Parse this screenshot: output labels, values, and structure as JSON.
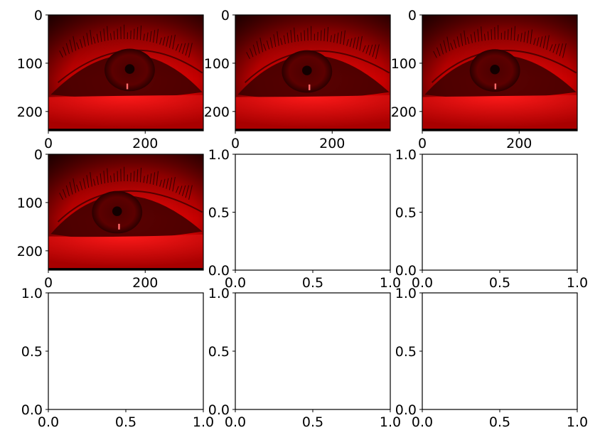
{
  "figure": {
    "background": "#ffffff",
    "image_color": "#e00000"
  },
  "chart_data": [
    {
      "type": "image",
      "content": "red-tinted close-up of an eye",
      "image_size": [
        320,
        240
      ],
      "xlim": [
        0,
        320
      ],
      "ylim": [
        240,
        0
      ],
      "xticks": [
        0,
        200
      ],
      "yticks": [
        0,
        100,
        200
      ],
      "xtick_labels": [
        "0",
        "200"
      ],
      "ytick_labels": [
        "0",
        "100",
        "200"
      ],
      "pupil_xy": [
        168,
        112
      ],
      "glint_xy": [
        163,
        148
      ]
    },
    {
      "type": "image",
      "content": "red-tinted close-up of an eye",
      "image_size": [
        320,
        240
      ],
      "xlim": [
        0,
        320
      ],
      "ylim": [
        240,
        0
      ],
      "xticks": [
        0,
        200
      ],
      "yticks": [
        0,
        100,
        200
      ],
      "xtick_labels": [
        "0",
        "200"
      ],
      "ytick_labels": [
        "0",
        "100",
        "200"
      ],
      "pupil_xy": [
        148,
        115
      ],
      "glint_xy": [
        153,
        150
      ]
    },
    {
      "type": "image",
      "content": "red-tinted close-up of an eye",
      "image_size": [
        320,
        240
      ],
      "xlim": [
        0,
        320
      ],
      "ylim": [
        240,
        0
      ],
      "xticks": [
        0,
        200
      ],
      "yticks": [
        0,
        100,
        200
      ],
      "xtick_labels": [
        "0",
        "200"
      ],
      "ytick_labels": [
        "0",
        "100",
        "200"
      ],
      "pupil_xy": [
        150,
        113
      ],
      "glint_xy": [
        151,
        148
      ]
    },
    {
      "type": "image",
      "content": "red-tinted close-up of an eye",
      "image_size": [
        320,
        240
      ],
      "xlim": [
        0,
        320
      ],
      "ylim": [
        240,
        0
      ],
      "xticks": [
        0,
        200
      ],
      "yticks": [
        0,
        100,
        200
      ],
      "xtick_labels": [
        "0",
        "200"
      ],
      "ytick_labels": [
        "0",
        "100",
        "200"
      ],
      "pupil_xy": [
        142,
        118
      ],
      "glint_xy": [
        146,
        150
      ]
    },
    {
      "type": "empty",
      "xlim": [
        0.0,
        1.0
      ],
      "ylim": [
        0.0,
        1.0
      ],
      "xticks": [
        0.0,
        0.5,
        1.0
      ],
      "yticks": [
        0.0,
        0.5,
        1.0
      ],
      "xtick_labels": [
        "0.0",
        "0.5",
        "1.0"
      ],
      "ytick_labels": [
        "0.0",
        "0.5",
        "1.0"
      ]
    },
    {
      "type": "empty",
      "xlim": [
        0.0,
        1.0
      ],
      "ylim": [
        0.0,
        1.0
      ],
      "xticks": [
        0.0,
        0.5,
        1.0
      ],
      "yticks": [
        0.0,
        0.5,
        1.0
      ],
      "xtick_labels": [
        "0.0",
        "0.5",
        "1.0"
      ],
      "ytick_labels": [
        "0.0",
        "0.5",
        "1.0"
      ]
    },
    {
      "type": "empty",
      "xlim": [
        0.0,
        1.0
      ],
      "ylim": [
        0.0,
        1.0
      ],
      "xticks": [
        0.0,
        0.5,
        1.0
      ],
      "yticks": [
        0.0,
        0.5,
        1.0
      ],
      "xtick_labels": [
        "0.0",
        "0.5",
        "1.0"
      ],
      "ytick_labels": [
        "0.0",
        "0.5",
        "1.0"
      ]
    },
    {
      "type": "empty",
      "xlim": [
        0.0,
        1.0
      ],
      "ylim": [
        0.0,
        1.0
      ],
      "xticks": [
        0.0,
        0.5,
        1.0
      ],
      "yticks": [
        0.0,
        0.5,
        1.0
      ],
      "xtick_labels": [
        "0.0",
        "0.5",
        "1.0"
      ],
      "ytick_labels": [
        "0.0",
        "0.5",
        "1.0"
      ]
    },
    {
      "type": "empty",
      "xlim": [
        0.0,
        1.0
      ],
      "ylim": [
        0.0,
        1.0
      ],
      "xticks": [
        0.0,
        0.5,
        1.0
      ],
      "yticks": [
        0.0,
        0.5,
        1.0
      ],
      "xtick_labels": [
        "0.0",
        "0.5",
        "1.0"
      ],
      "ytick_labels": [
        "0.0",
        "0.5",
        "1.0"
      ]
    }
  ]
}
